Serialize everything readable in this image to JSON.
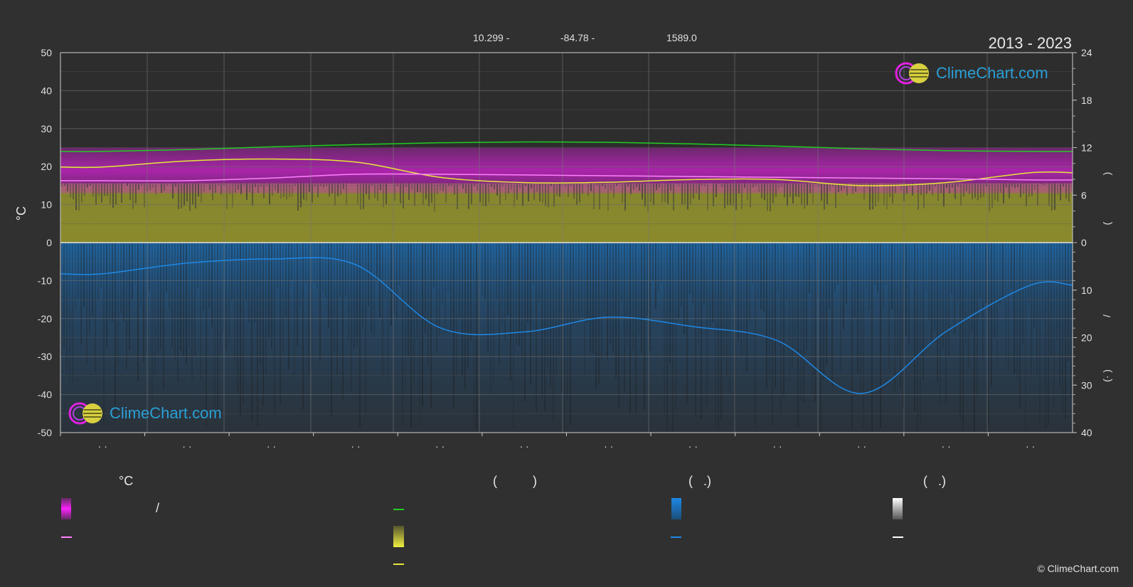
{
  "header": {
    "period": "2013 - 2023",
    "coords": [
      "10.299 -",
      "-84.78 -",
      "1589.0"
    ]
  },
  "logo": {
    "text": "ClimeChart.com"
  },
  "copyright": "© ClimeChart.com",
  "left_axis": {
    "unit": "°C",
    "ticks": [
      50,
      40,
      30,
      20,
      10,
      0,
      -10,
      -20,
      -30,
      -40,
      -50
    ]
  },
  "right_axis_top": {
    "ticks": [
      24,
      18,
      12,
      6,
      0
    ]
  },
  "right_axis_bottom": {
    "ticks": [
      0,
      10,
      20,
      30,
      40
    ]
  },
  "right_axis_marks": [
    ")",
    "(",
    "/",
    "(·   )"
  ],
  "month_labels": [
    "· ·",
    "· ·",
    "· ·",
    "· ·",
    "· ·",
    "· ·",
    "· ·",
    "· ·",
    "· ·",
    "· ·",
    "· ·",
    "· ·"
  ],
  "legend": {
    "headers": [
      "°C",
      "(          )",
      "(   .)",
      "(   .)"
    ],
    "slash": "/",
    "colors": {
      "temp_range": "#e020e0",
      "mean_temp": "#ff80ff",
      "daylight": "#22cc22",
      "sunshine": "#e6e63a",
      "precip": "#1e88e5",
      "snow": "#ffffff"
    }
  },
  "chart_data": {
    "type": "line",
    "xlabel": "",
    "ylabel": "°C",
    "ylim": [
      -50,
      50
    ],
    "categories": [
      "1",
      "2",
      "3",
      "4",
      "5",
      "6",
      "7",
      "8",
      "9",
      "10",
      "11",
      "12"
    ],
    "series": [
      {
        "values": [
          24.0,
          24.5,
          25.2,
          25.8,
          26.3,
          26.5,
          26.4,
          26.0,
          25.4,
          24.7,
          24.2,
          24.0
        ]
      },
      {
        "values": [
          19.9,
          21.5,
          22.0,
          21.2,
          17.2,
          15.8,
          15.9,
          16.6,
          16.6,
          15.0,
          15.8,
          18.4
        ]
      },
      {
        "values": [
          16.3,
          16.3,
          17.0,
          18.0,
          18.0,
          17.8,
          17.6,
          17.4,
          17.2,
          17.0,
          16.8,
          16.5
        ]
      },
      {
        "values": [
          -8.2,
          -5.4,
          -4.3,
          -5.8,
          -22.4,
          -23.5,
          -19.6,
          -22.1,
          -25.8,
          -39.7,
          -23.4,
          -11.2
        ]
      }
    ],
    "sunshine_hours_max": 24,
    "precip_mm_max": 40,
    "grid": true
  }
}
